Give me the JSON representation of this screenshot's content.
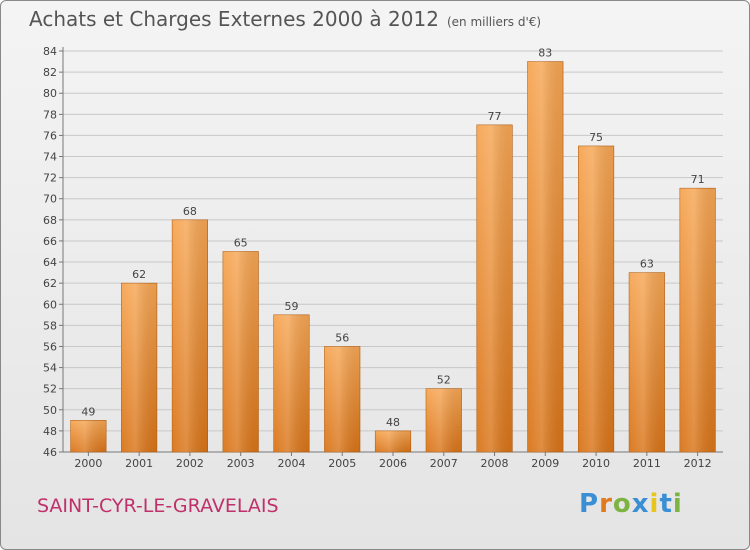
{
  "header": {
    "title": "Achats et Charges Externes 2000 à 2012",
    "unit": "(en milliers d'€)"
  },
  "footer": {
    "commune": "SAINT-CYR-LE-GRAVELAIS",
    "logo": "Proxiti",
    "logo_colors": [
      "#3a8fd4",
      "#e07a1f",
      "#7cb342",
      "#3a8fd4",
      "#e5c51e",
      "#3a8fd4",
      "#7cb342"
    ]
  },
  "colors": {
    "bar_light": "#f6a654",
    "bar_dark": "#d97418",
    "grid": "#c8c8c8",
    "axis": "#777777",
    "commune": "#c0306a"
  },
  "chart_data": {
    "type": "bar",
    "title": "Achats et Charges Externes 2000 à 2012",
    "subtitle": "(en milliers d'€)",
    "xlabel": "",
    "ylabel": "",
    "categories": [
      "2000",
      "2001",
      "2002",
      "2003",
      "2004",
      "2005",
      "2006",
      "2007",
      "2008",
      "2009",
      "2010",
      "2011",
      "2012"
    ],
    "values": [
      49,
      62,
      68,
      65,
      59,
      56,
      48,
      52,
      77,
      83,
      75,
      63,
      71
    ],
    "ylim": [
      46,
      84
    ],
    "ytick_step": 2,
    "grid": true,
    "legend": "none"
  }
}
